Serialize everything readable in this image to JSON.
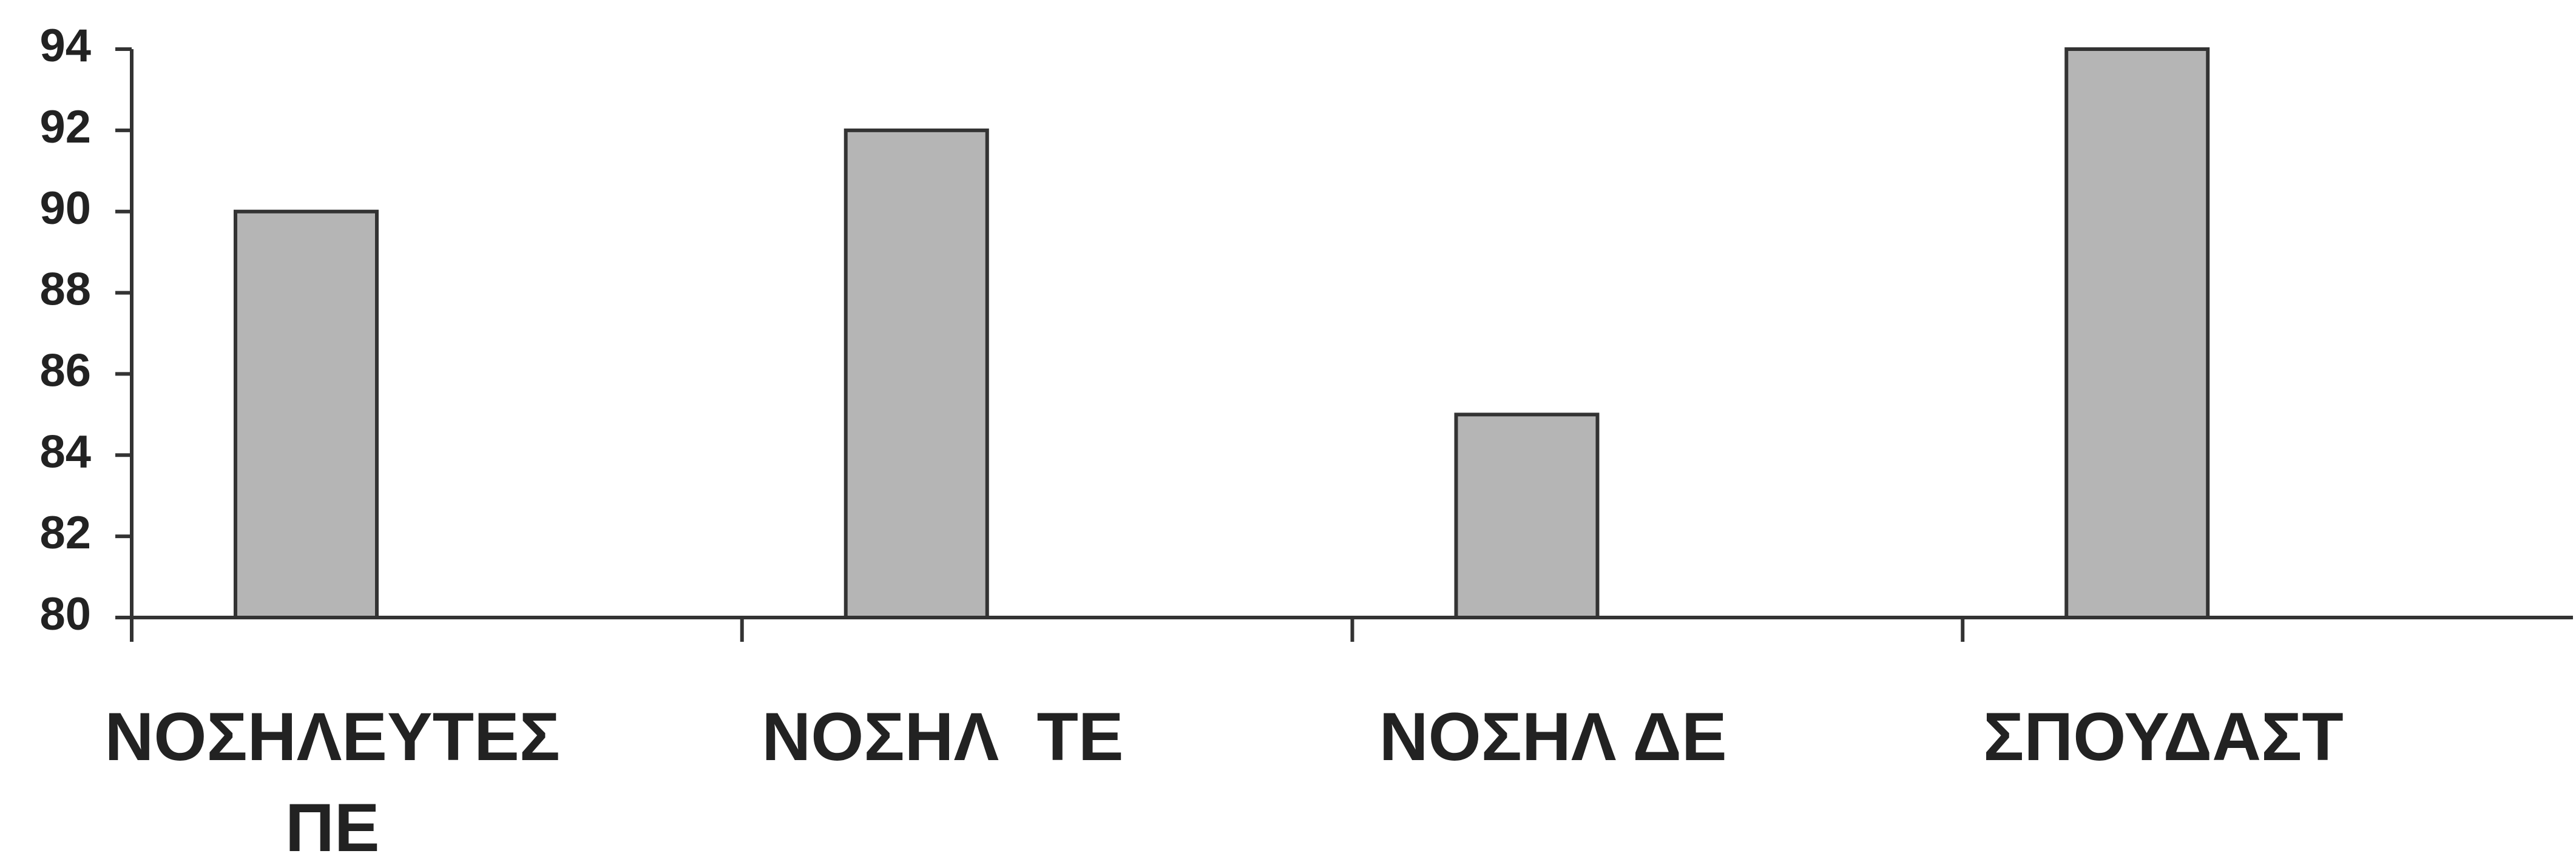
{
  "chart_data": {
    "type": "bar",
    "categories": [
      "ΝΟΣΗΛΕΥΤΕΣ ΠΕ",
      "ΝΟΣΗΛ  ΤΕ",
      "ΝΟΣΗΛ ΔΕ",
      "ΣΠΟΥΔΑΣΤ"
    ],
    "values": [
      90,
      92,
      85,
      94
    ],
    "color": "#b5b5b5",
    "ylim": [
      80,
      94
    ],
    "yticks": [
      80,
      82,
      84,
      86,
      88,
      90,
      92,
      94
    ],
    "grid": false
  }
}
